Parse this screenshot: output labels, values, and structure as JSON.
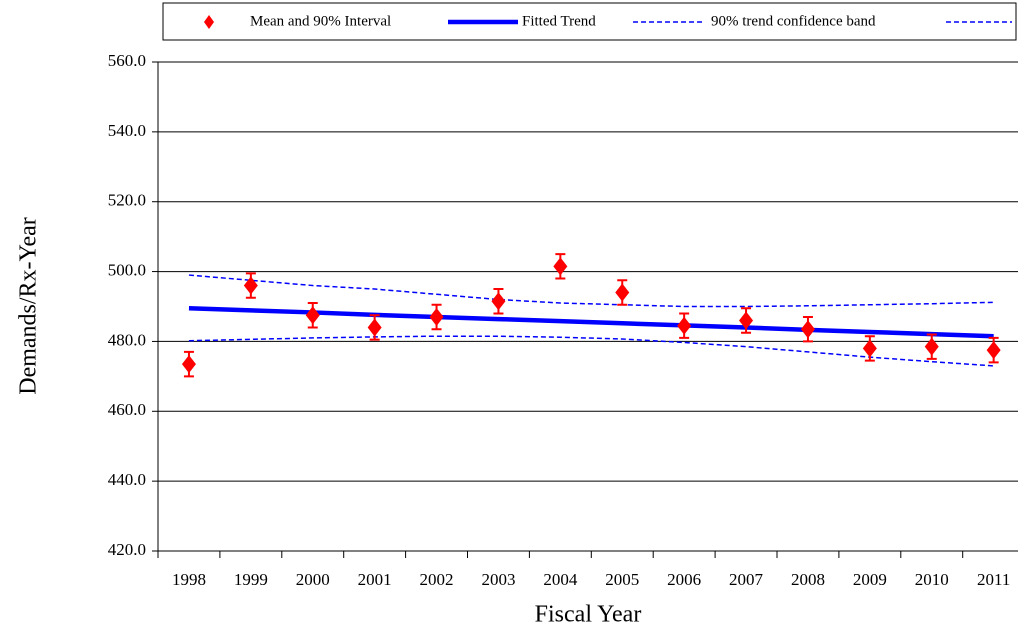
{
  "chart_data": {
    "type": "line",
    "xlabel": "Fiscal Year",
    "ylabel": "Demands/Rx-Year",
    "categories": [
      "1998",
      "1999",
      "2000",
      "2001",
      "2002",
      "2003",
      "2004",
      "2005",
      "2006",
      "2007",
      "2008",
      "2009",
      "2010",
      "2011"
    ],
    "series": [
      {
        "name": "Mean and 90% Interval",
        "color": "#ff0000",
        "values": [
          473.5,
          496,
          487.5,
          484,
          487,
          491.5,
          501.5,
          494,
          484.5,
          486,
          483.5,
          478,
          478.5,
          477.5
        ],
        "errors": [
          3.5,
          3.5,
          3.5,
          3.5,
          3.5,
          3.5,
          3.5,
          3.5,
          3.5,
          3.5,
          3.5,
          3.5,
          3.5,
          3.5
        ]
      },
      {
        "name": "Fitted Trend",
        "color": "#0000ff",
        "values": [
          489.5,
          488.9,
          488.3,
          487.6,
          487.0,
          486.4,
          485.8,
          485.2,
          484.6,
          484.0,
          483.3,
          482.7,
          482.1,
          481.5
        ]
      },
      {
        "name": "90% trend confidence band",
        "color": "#0000ff",
        "upper": [
          499,
          497.5,
          496,
          495,
          493.5,
          492,
          491,
          490.5,
          490,
          490,
          490.2,
          490.5,
          490.8,
          491.2
        ],
        "lower": [
          480.2,
          480.6,
          481,
          481.3,
          481.5,
          481.5,
          481.2,
          480.7,
          479.7,
          478.5,
          477,
          475.5,
          474.2,
          473
        ]
      }
    ],
    "ylim": [
      420,
      560
    ],
    "yticks": [
      {
        "value": 420,
        "label": "420.0"
      },
      {
        "value": 440,
        "label": "440.0"
      },
      {
        "value": 460,
        "label": "460.0"
      },
      {
        "value": 480,
        "label": "480.0"
      },
      {
        "value": 500,
        "label": "500.0"
      },
      {
        "value": 520,
        "label": "520.0"
      },
      {
        "value": 540,
        "label": "540.0"
      },
      {
        "value": 560,
        "label": "560.0"
      }
    ],
    "grid": true
  }
}
